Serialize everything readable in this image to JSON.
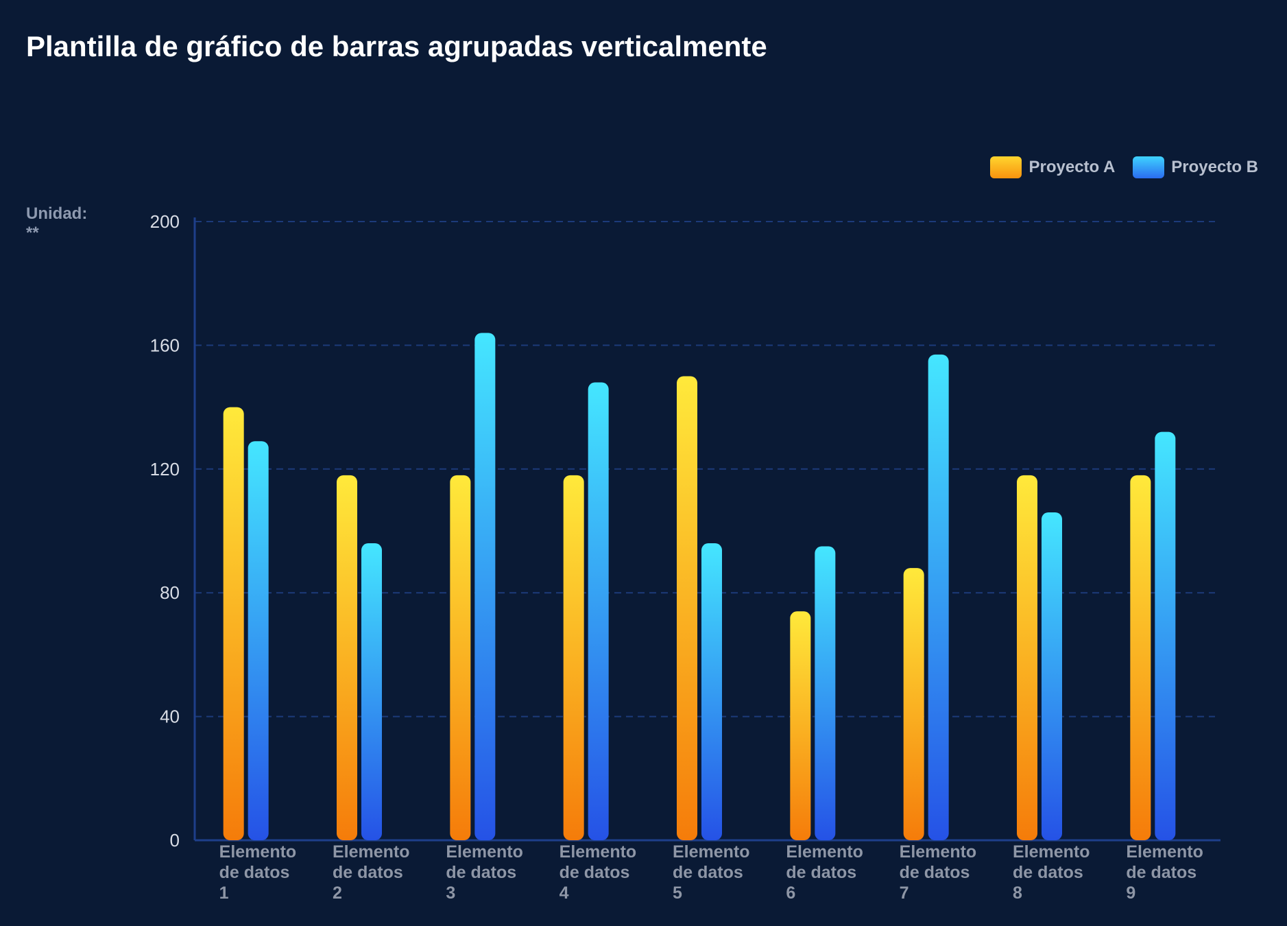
{
  "title": "Plantilla de gráfico de barras agrupadas verticalmente",
  "unit_label": "Unidad: **",
  "colors": {
    "background": "#0a1a35",
    "series_a_top": "#ffe93b",
    "series_a_bottom": "#f57c0a",
    "series_b_top": "#45e6ff",
    "series_b_bottom": "#2552e6",
    "axis": "#1e3f8a",
    "grid": "#1c3a7a"
  },
  "chart_data": {
    "type": "bar",
    "title": "Plantilla de gráfico de barras agrupadas verticalmente",
    "ylabel": "Unidad: **",
    "xlabel": "",
    "ylim": [
      0,
      200
    ],
    "yticks": [
      0,
      40,
      80,
      120,
      160,
      200
    ],
    "grid": true,
    "legend_position": "top-right",
    "categories": [
      "Elemento de datos 1",
      "Elemento de datos 2",
      "Elemento de datos 3",
      "Elemento de datos 4",
      "Elemento de datos 5",
      "Elemento de datos 6",
      "Elemento de datos 7",
      "Elemento de datos 8",
      "Elemento de datos 9"
    ],
    "category_lines": [
      [
        "Elemento",
        "de datos",
        "1"
      ],
      [
        "Elemento",
        "de datos",
        "2"
      ],
      [
        "Elemento",
        "de datos",
        "3"
      ],
      [
        "Elemento",
        "de datos",
        "4"
      ],
      [
        "Elemento",
        "de datos",
        "5"
      ],
      [
        "Elemento",
        "de datos",
        "6"
      ],
      [
        "Elemento",
        "de datos",
        "7"
      ],
      [
        "Elemento",
        "de datos",
        "8"
      ],
      [
        "Elemento",
        "de datos",
        "9"
      ]
    ],
    "series": [
      {
        "name": "Proyecto A",
        "values": [
          140,
          118,
          118,
          118,
          150,
          74,
          88,
          118,
          118
        ]
      },
      {
        "name": "Proyecto B",
        "values": [
          129,
          96,
          164,
          148,
          96,
          95,
          157,
          106,
          132
        ]
      }
    ]
  }
}
